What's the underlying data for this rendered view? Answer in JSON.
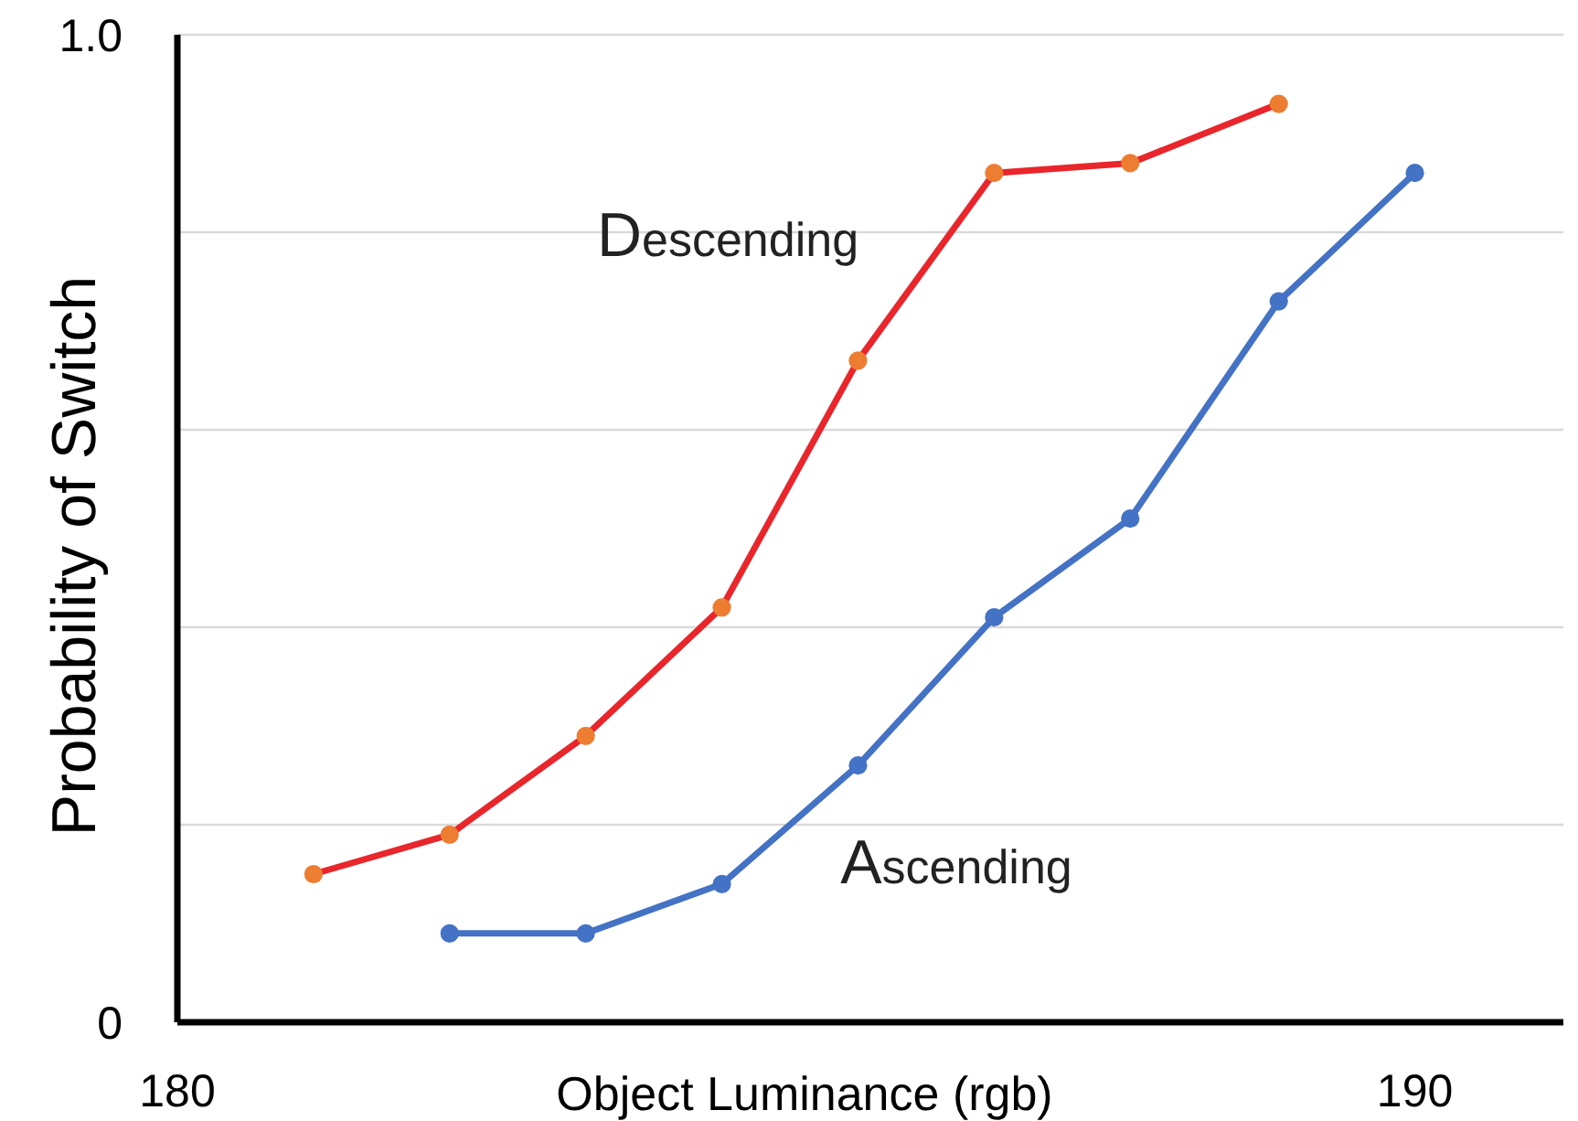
{
  "chart_data": {
    "type": "line",
    "xlabel": "Object Luminance (rgb)",
    "ylabel": "Probability of Switch",
    "xlim": [
      180,
      191.2
    ],
    "xticks": [
      180,
      190
    ],
    "ylim": [
      0,
      1
    ],
    "yticks": [
      0,
      {
        "value": 0.2,
        "label": null
      },
      {
        "value": 0.4,
        "label": null
      },
      {
        "value": 0.6,
        "label": null
      },
      {
        "value": 0.8,
        "label": null
      },
      {
        "value": 1,
        "label": "1.0"
      }
    ],
    "grid": "y",
    "marker": "circle",
    "series": [
      {
        "name": "Descending",
        "color": "#e8262b",
        "colors": [
          "#ed7d31",
          "#ed7d31",
          "#ed7d31",
          "#ed7d31",
          "#ed7d31",
          "#ed7d31",
          "#ed7d31",
          "#ed7d31"
        ],
        "x": [
          181.1,
          182.2,
          183.3,
          184.4,
          185.5,
          186.6,
          187.7,
          188.9
        ],
        "values": [
          0.15,
          0.19,
          0.29,
          0.42,
          0.67,
          0.86,
          0.87,
          0.93
        ]
      },
      {
        "name": "Ascending",
        "color": "#4472c4",
        "x": [
          182.2,
          183.3,
          184.4,
          185.5,
          186.6,
          187.7,
          188.9,
          190
        ],
        "values": [
          0.09,
          0.09,
          0.14,
          0.26,
          0.41,
          0.51,
          0.73,
          0.86
        ]
      }
    ]
  }
}
